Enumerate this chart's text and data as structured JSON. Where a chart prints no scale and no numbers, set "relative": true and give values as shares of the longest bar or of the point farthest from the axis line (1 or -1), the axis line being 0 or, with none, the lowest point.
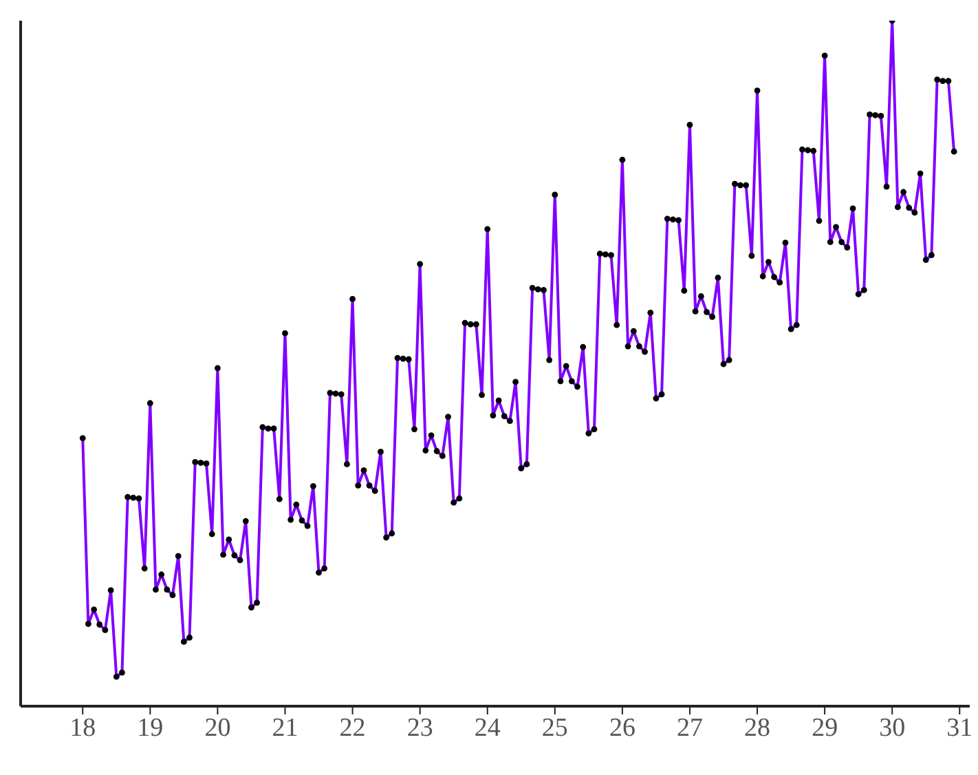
{
  "chart_data": {
    "type": "line",
    "relative": true,
    "marker": "circle",
    "line_style": "solid",
    "grid": false,
    "xlim": [
      17.08,
      31.15
    ],
    "xticks": [
      18,
      19,
      20,
      21,
      22,
      23,
      24,
      25,
      26,
      27,
      28,
      29,
      30,
      31
    ],
    "x": [
      18,
      18.083,
      18.167,
      18.25,
      18.333,
      18.417,
      18.5,
      18.583,
      18.667,
      18.75,
      18.833,
      18.917,
      19,
      19.083,
      19.167,
      19.25,
      19.333,
      19.417,
      19.5,
      19.583,
      19.667,
      19.75,
      19.833,
      19.917,
      20,
      20.083,
      20.167,
      20.25,
      20.333,
      20.417,
      20.5,
      20.583,
      20.667,
      20.75,
      20.833,
      20.917,
      21,
      21.083,
      21.167,
      21.25,
      21.333,
      21.417,
      21.5,
      21.583,
      21.667,
      21.75,
      21.833,
      21.917,
      22,
      22.083,
      22.167,
      22.25,
      22.333,
      22.417,
      22.5,
      22.583,
      22.667,
      22.75,
      22.833,
      22.917,
      23,
      23.083,
      23.167,
      23.25,
      23.333,
      23.417,
      23.5,
      23.583,
      23.667,
      23.75,
      23.833,
      23.917,
      24,
      24.083,
      24.167,
      24.25,
      24.333,
      24.417,
      24.5,
      24.583,
      24.667,
      24.75,
      24.833,
      24.917,
      25,
      25.083,
      25.167,
      25.25,
      25.333,
      25.417,
      25.5,
      25.583,
      25.667,
      25.75,
      25.833,
      25.917,
      26,
      26.083,
      26.167,
      26.25,
      26.333,
      26.417,
      26.5,
      26.583,
      26.667,
      26.75,
      26.833,
      26.917,
      27,
      27.083,
      27.167,
      27.25,
      27.333,
      27.417,
      27.5,
      27.583,
      27.667,
      27.75,
      27.833,
      27.917,
      28,
      28.083,
      28.167,
      28.25,
      28.333,
      28.417,
      28.5,
      28.583,
      28.667,
      28.75,
      28.833,
      28.917,
      29,
      29.083,
      29.167,
      29.25,
      29.333,
      29.417,
      29.5,
      29.583,
      29.667,
      29.75,
      29.833,
      29.917,
      30,
      30.083,
      30.167,
      30.25,
      30.333,
      30.417,
      30.5,
      30.583,
      30.667,
      30.75,
      30.833,
      30.917
    ],
    "series": [
      {
        "color": "#8000ff",
        "values": [
          0.391,
          0.12,
          0.141,
          0.119,
          0.111,
          0.169,
          0.043,
          0.049,
          0.305,
          0.304,
          0.303,
          0.201,
          0.442,
          0.17,
          0.192,
          0.17,
          0.162,
          0.219,
          0.094,
          0.1,
          0.356,
          0.355,
          0.354,
          0.251,
          0.493,
          0.221,
          0.243,
          0.22,
          0.213,
          0.27,
          0.144,
          0.151,
          0.407,
          0.405,
          0.405,
          0.302,
          0.544,
          0.272,
          0.294,
          0.271,
          0.263,
          0.321,
          0.195,
          0.201,
          0.457,
          0.456,
          0.455,
          0.353,
          0.594,
          0.322,
          0.344,
          0.322,
          0.314,
          0.371,
          0.246,
          0.252,
          0.508,
          0.507,
          0.506,
          0.404,
          0.645,
          0.373,
          0.395,
          0.372,
          0.365,
          0.422,
          0.297,
          0.303,
          0.559,
          0.557,
          0.557,
          0.454,
          0.696,
          0.424,
          0.446,
          0.423,
          0.416,
          0.473,
          0.347,
          0.353,
          0.61,
          0.608,
          0.607,
          0.505,
          0.746,
          0.474,
          0.496,
          0.474,
          0.466,
          0.524,
          0.398,
          0.404,
          0.66,
          0.659,
          0.658,
          0.556,
          0.797,
          0.525,
          0.547,
          0.525,
          0.517,
          0.574,
          0.449,
          0.455,
          0.711,
          0.71,
          0.709,
          0.606,
          0.848,
          0.576,
          0.598,
          0.575,
          0.568,
          0.625,
          0.499,
          0.505,
          0.762,
          0.76,
          0.76,
          0.657,
          0.898,
          0.627,
          0.648,
          0.626,
          0.618,
          0.676,
          0.55,
          0.556,
          0.812,
          0.811,
          0.81,
          0.708,
          0.949,
          0.677,
          0.699,
          0.677,
          0.669,
          0.726,
          0.601,
          0.607,
          0.863,
          0.862,
          0.861,
          0.758,
          1.0,
          0.728,
          0.75,
          0.727,
          0.72,
          0.777,
          0.651,
          0.658,
          0.914,
          0.912,
          0.912,
          0.809
        ]
      }
    ]
  }
}
